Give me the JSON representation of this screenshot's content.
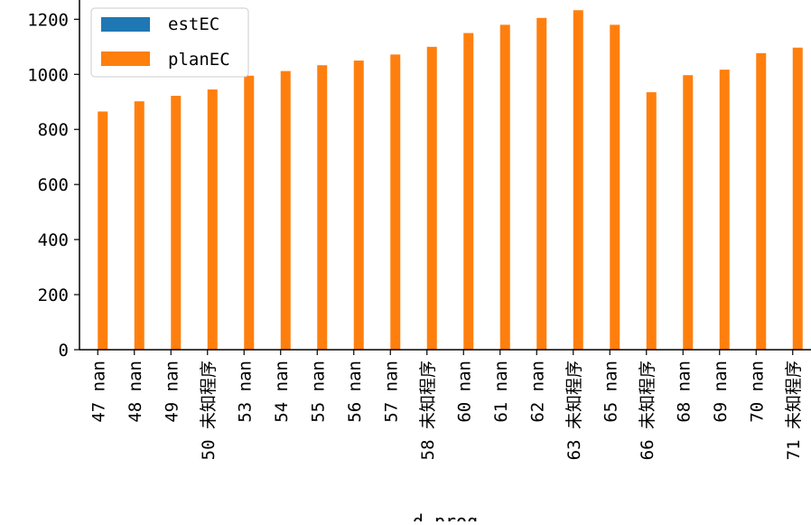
{
  "chart_data": {
    "type": "bar",
    "xlabel": "d_prog",
    "ylabel": "",
    "ylim": [
      0,
      1270
    ],
    "yticks": [
      0,
      200,
      400,
      600,
      800,
      1000,
      1200
    ],
    "legend_position": "top-left",
    "categories": [
      "47 nan",
      "48 nan",
      "49 nan",
      "50 未知程序",
      "53 nan",
      "54 nan",
      "55 nan",
      "56 nan",
      "57 nan",
      "58 未知程序",
      "60 nan",
      "61 nan",
      "62 nan",
      "63 未知程序",
      "65 nan",
      "66 未知程序",
      "68 nan",
      "69 nan",
      "70 nan",
      "71 未知程序"
    ],
    "series": [
      {
        "name": "estEC",
        "color": "#1f77b4",
        "values": [
          null,
          null,
          null,
          null,
          null,
          null,
          null,
          null,
          null,
          null,
          null,
          null,
          null,
          null,
          null,
          null,
          null,
          null,
          null,
          null
        ]
      },
      {
        "name": "planEC",
        "color": "#ff7f0e",
        "values": [
          865,
          902,
          922,
          945,
          995,
          1012,
          1033,
          1050,
          1072,
          1100,
          1150,
          1180,
          1205,
          1233,
          1180,
          935,
          997,
          1017,
          1077,
          1097
        ]
      }
    ]
  }
}
